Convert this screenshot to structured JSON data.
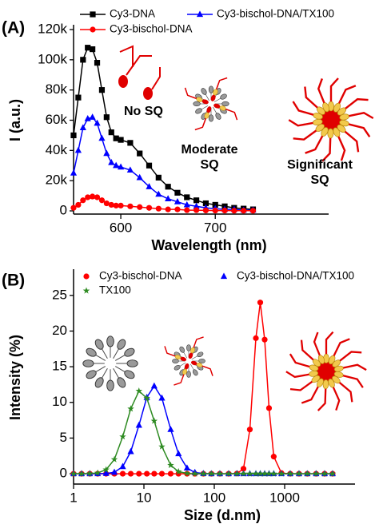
{
  "chart_data": [
    {
      "type": "line",
      "label": "(A)",
      "x_label": "Wavelength (nm)",
      "y_label": "I (a.u.)",
      "xlim": [
        550,
        820
      ],
      "xticks": [
        600,
        700
      ],
      "ylim": [
        0,
        120000
      ],
      "yticks": [
        0,
        {
          "value": 20000,
          "label": "20k"
        },
        {
          "value": 40000,
          "label": "40k"
        },
        {
          "value": 60000,
          "label": "60k"
        },
        {
          "value": 80000,
          "label": "80k"
        },
        {
          "value": 100000,
          "label": "100k"
        },
        {
          "value": 120000,
          "label": "120k"
        }
      ],
      "x": [
        550,
        555,
        560,
        565,
        570,
        575,
        580,
        585,
        590,
        595,
        600,
        610,
        620,
        630,
        640,
        650,
        660,
        670,
        680,
        690,
        700,
        710,
        720,
        730,
        740
      ],
      "series": [
        {
          "name": "Cy3-DNA",
          "color": "#000000",
          "marker": "square",
          "values": [
            50000,
            75000,
            100000,
            108000,
            107000,
            98000,
            80000,
            62000,
            52000,
            48000,
            47000,
            45000,
            38000,
            30000,
            22000,
            16000,
            12000,
            9000,
            7000,
            5000,
            4000,
            3000,
            2000,
            1500,
            1000
          ]
        },
        {
          "name": "Cy3-bischol-DNA/TX100",
          "color": "#0000ff",
          "marker": "triangle",
          "values": [
            25000,
            40000,
            55000,
            61000,
            62000,
            58000,
            48000,
            38000,
            32000,
            30000,
            29000,
            27000,
            22000,
            16000,
            11000,
            8000,
            6000,
            4000,
            3000,
            2000,
            1500,
            1000,
            1000,
            500,
            500
          ]
        },
        {
          "name": "Cy3-bischol-DNA",
          "color": "#ff0000",
          "marker": "circle",
          "values": [
            2000,
            4000,
            7000,
            9000,
            9500,
            9000,
            7000,
            5000,
            4000,
            3500,
            3500,
            3000,
            2500,
            2000,
            1500,
            1000,
            1000,
            500,
            500,
            300,
            200,
            200,
            100,
            100,
            100
          ]
        }
      ],
      "annotations": [
        "No SQ",
        "Moderate\nSQ",
        "Significant\nSQ"
      ]
    },
    {
      "type": "line",
      "label": "(B)",
      "x_label": "Size (d.nm)",
      "y_label": "Intensity (%)",
      "x_log": true,
      "xlim": [
        1,
        10000
      ],
      "xticks": [
        1,
        10,
        100,
        1000
      ],
      "ylim": [
        -1,
        28
      ],
      "yticks": [
        0,
        5,
        10,
        15,
        20,
        25
      ],
      "x": [
        1,
        1.3,
        1.7,
        2.2,
        2.9,
        3.8,
        5,
        6.5,
        8.5,
        11,
        14,
        18,
        24,
        31,
        41,
        53,
        70,
        91,
        120,
        160,
        210,
        260,
        320,
        390,
        450,
        520,
        600,
        700,
        900,
        1200,
        1600,
        2100,
        2800,
        3700,
        4800
      ],
      "series": [
        {
          "name": "Cy3-bischol-DNA",
          "color": "#ff0000",
          "marker": "circle",
          "values": [
            0,
            0,
            0,
            0,
            0,
            0,
            0,
            0,
            0,
            0,
            0,
            0,
            0,
            0,
            0,
            0,
            0,
            0,
            0,
            0,
            0.03,
            0.7,
            6.2,
            19.0,
            24,
            18.8,
            9.2,
            2.4,
            0.09,
            0,
            0,
            0,
            0,
            0,
            0
          ]
        },
        {
          "name": "Cy3-bischol-DNA/TX100",
          "color": "#0000ff",
          "marker": "triangle",
          "values": [
            0,
            0,
            0,
            0,
            0.04,
            0.2,
            1.0,
            3.1,
            6.8,
            10.7,
            12.3,
            10.6,
            6.2,
            2.8,
            0.8,
            0.18,
            0.03,
            0,
            0,
            0,
            0,
            0,
            0,
            0,
            0,
            0,
            0,
            0,
            0,
            0,
            0,
            0,
            0,
            0,
            0
          ]
        },
        {
          "name": "TX100",
          "color": "#2e8b22",
          "marker": "star",
          "values": [
            0,
            0,
            0.02,
            0.11,
            0.57,
            2.0,
            5.2,
            9.1,
            11.6,
            10.6,
            7.4,
            3.8,
            1.2,
            0.3,
            0.05,
            0,
            0,
            0,
            0,
            0,
            0,
            0,
            0,
            0,
            0,
            0,
            0,
            0,
            0,
            0,
            0,
            0,
            0,
            0,
            0
          ]
        }
      ]
    }
  ]
}
